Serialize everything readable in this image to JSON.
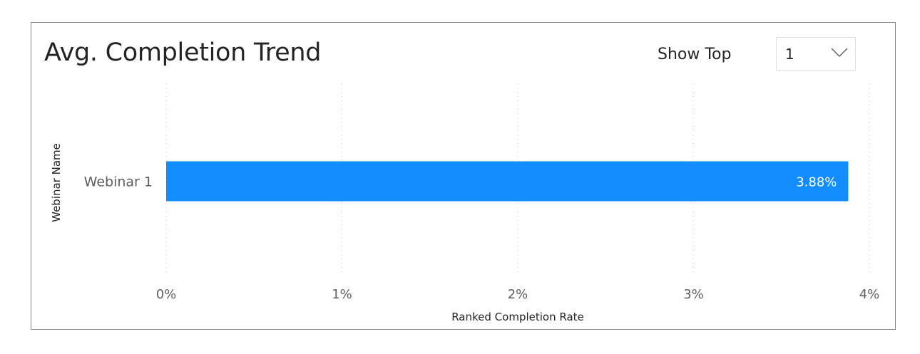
{
  "visual": {
    "title": "Avg. Completion Trend"
  },
  "slicer": {
    "label": "Show Top",
    "selected_value": "1",
    "chevron_icon": "chevron-down-icon"
  },
  "chart_data": {
    "type": "bar",
    "orientation": "horizontal",
    "categories": [
      "Webinar 1"
    ],
    "values": [
      3.88
    ],
    "data_labels": [
      "3.88%"
    ],
    "xlabel": "Ranked Completion Rate",
    "ylabel": "Webinar Name",
    "xlim": [
      0,
      4
    ],
    "xticks": [
      0,
      1,
      2,
      3,
      4
    ],
    "xtick_labels": [
      "0%",
      "1%",
      "2%",
      "3%",
      "4%"
    ],
    "grid": "vertical-dotted",
    "bar_color": "#118DFF"
  }
}
